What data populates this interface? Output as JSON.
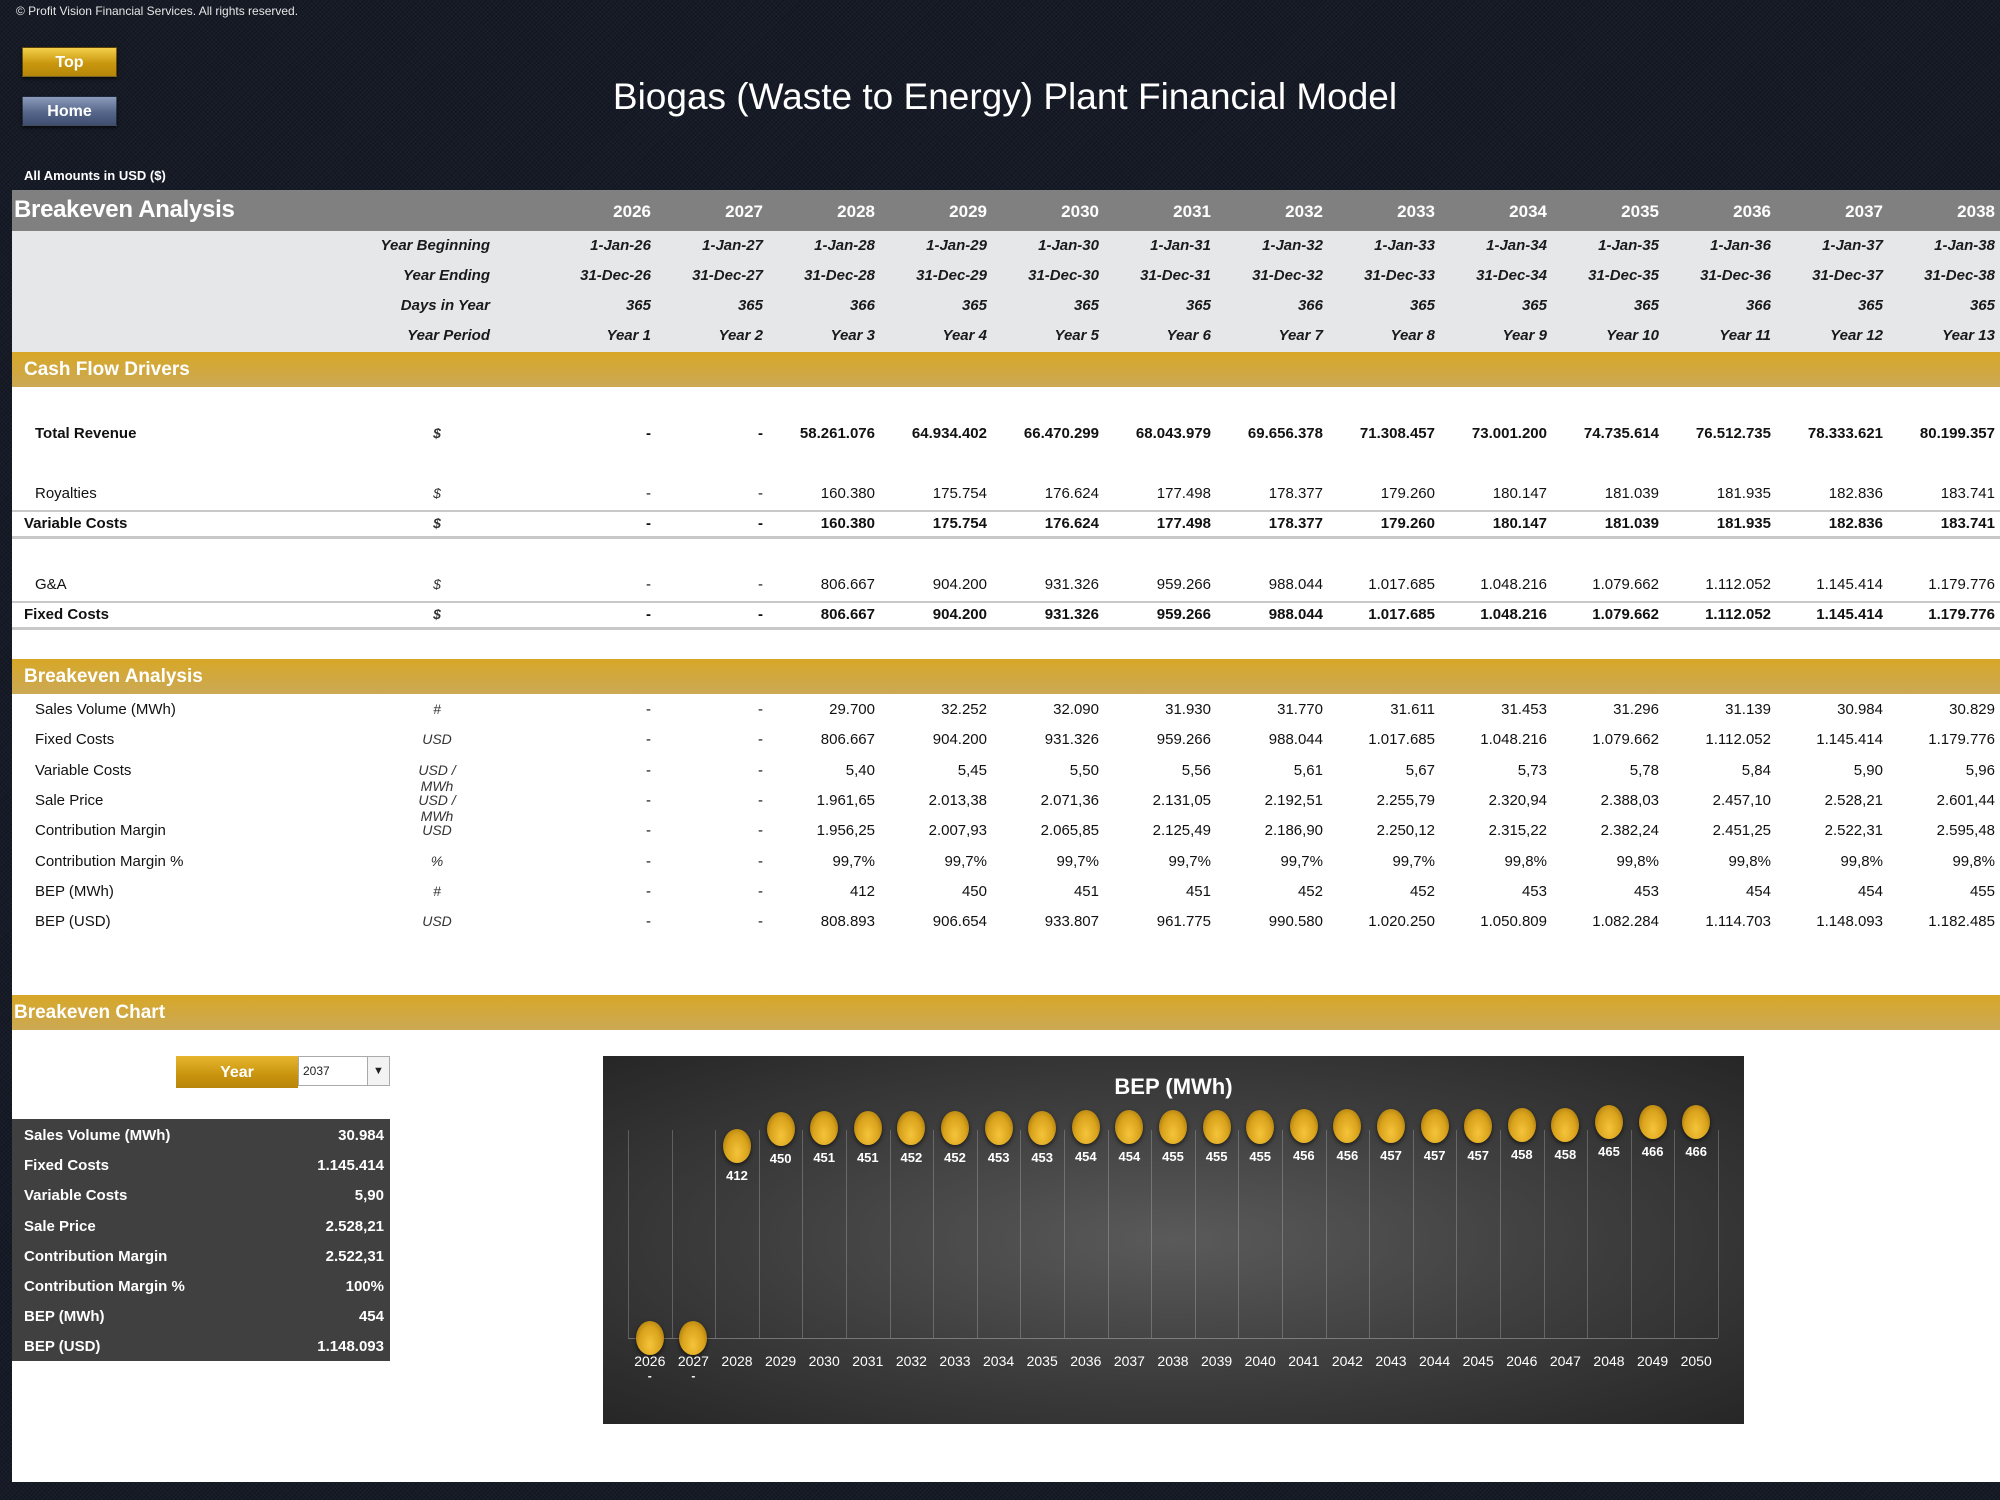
{
  "copyright": "© Profit Vision Financial Services. All rights reserved.",
  "nav": {
    "top_label": "Top",
    "home_label": "Home"
  },
  "title": "Biogas (Waste to Energy) Plant Financial Model",
  "amounts_note": "All Amounts in  USD ($)",
  "header": {
    "title": "Breakeven Analysis",
    "years": [
      "2026",
      "2027",
      "2028",
      "2029",
      "2030",
      "2031",
      "2032",
      "2033",
      "2034",
      "2035",
      "2036",
      "2037",
      "2038"
    ]
  },
  "timeline": {
    "labels": {
      "begin": "Year Beginning",
      "end": "Year Ending",
      "days": "Days in Year",
      "period": "Year Period"
    },
    "begin": [
      "1-Jan-26",
      "1-Jan-27",
      "1-Jan-28",
      "1-Jan-29",
      "1-Jan-30",
      "1-Jan-31",
      "1-Jan-32",
      "1-Jan-33",
      "1-Jan-34",
      "1-Jan-35",
      "1-Jan-36",
      "1-Jan-37",
      "1-Jan-38"
    ],
    "end": [
      "31-Dec-26",
      "31-Dec-27",
      "31-Dec-28",
      "31-Dec-29",
      "31-Dec-30",
      "31-Dec-31",
      "31-Dec-32",
      "31-Dec-33",
      "31-Dec-34",
      "31-Dec-35",
      "31-Dec-36",
      "31-Dec-37",
      "31-Dec-38"
    ],
    "days": [
      "365",
      "365",
      "366",
      "365",
      "365",
      "365",
      "366",
      "365",
      "365",
      "365",
      "366",
      "365",
      "365"
    ],
    "period": [
      "Year 1",
      "Year 2",
      "Year 3",
      "Year 4",
      "Year 5",
      "Year 6",
      "Year 7",
      "Year 8",
      "Year 9",
      "Year 10",
      "Year 11",
      "Year 12",
      "Year 13"
    ]
  },
  "cash_flow": {
    "title": "Cash Flow Drivers",
    "total_revenue": {
      "label": "Total Revenue",
      "unit": "$",
      "values": [
        "-",
        "-",
        "58.261.076",
        "64.934.402",
        "66.470.299",
        "68.043.979",
        "69.656.378",
        "71.308.457",
        "73.001.200",
        "74.735.614",
        "76.512.735",
        "78.333.621",
        "80.199.357"
      ]
    },
    "royalties": {
      "label": "Royalties",
      "unit": "$",
      "values": [
        "-",
        "-",
        "160.380",
        "175.754",
        "176.624",
        "177.498",
        "178.377",
        "179.260",
        "180.147",
        "181.039",
        "181.935",
        "182.836",
        "183.741"
      ]
    },
    "variable_costs": {
      "label": "Variable Costs",
      "unit": "$",
      "values": [
        "-",
        "-",
        "160.380",
        "175.754",
        "176.624",
        "177.498",
        "178.377",
        "179.260",
        "180.147",
        "181.039",
        "181.935",
        "182.836",
        "183.741"
      ]
    },
    "ga": {
      "label": "G&A",
      "unit": "$",
      "values": [
        "-",
        "-",
        "806.667",
        "904.200",
        "931.326",
        "959.266",
        "988.044",
        "1.017.685",
        "1.048.216",
        "1.079.662",
        "1.112.052",
        "1.145.414",
        "1.179.776"
      ]
    },
    "fixed_costs": {
      "label": "Fixed Costs",
      "unit": "$",
      "values": [
        "-",
        "-",
        "806.667",
        "904.200",
        "931.326",
        "959.266",
        "988.044",
        "1.017.685",
        "1.048.216",
        "1.079.662",
        "1.112.052",
        "1.145.414",
        "1.179.776"
      ]
    }
  },
  "breakeven": {
    "title": "Breakeven Analysis",
    "rows": [
      {
        "label": "Sales Volume (MWh)",
        "unit": "#",
        "values": [
          "-",
          "-",
          "29.700",
          "32.252",
          "32.090",
          "31.930",
          "31.770",
          "31.611",
          "31.453",
          "31.296",
          "31.139",
          "30.984",
          "30.829"
        ]
      },
      {
        "label": "Fixed Costs",
        "unit": "USD",
        "values": [
          "-",
          "-",
          "806.667",
          "904.200",
          "931.326",
          "959.266",
          "988.044",
          "1.017.685",
          "1.048.216",
          "1.079.662",
          "1.112.052",
          "1.145.414",
          "1.179.776"
        ]
      },
      {
        "label": "Variable Costs",
        "unit": "USD / MWh",
        "values": [
          "-",
          "-",
          "5,40",
          "5,45",
          "5,50",
          "5,56",
          "5,61",
          "5,67",
          "5,73",
          "5,78",
          "5,84",
          "5,90",
          "5,96"
        ]
      },
      {
        "label": "Sale Price",
        "unit": "USD / MWh",
        "values": [
          "-",
          "-",
          "1.961,65",
          "2.013,38",
          "2.071,36",
          "2.131,05",
          "2.192,51",
          "2.255,79",
          "2.320,94",
          "2.388,03",
          "2.457,10",
          "2.528,21",
          "2.601,44"
        ]
      },
      {
        "label": "Contribution Margin",
        "unit": "USD",
        "values": [
          "-",
          "-",
          "1.956,25",
          "2.007,93",
          "2.065,85",
          "2.125,49",
          "2.186,90",
          "2.250,12",
          "2.315,22",
          "2.382,24",
          "2.451,25",
          "2.522,31",
          "2.595,48"
        ]
      },
      {
        "label": "Contribution Margin %",
        "unit": "%",
        "values": [
          "-",
          "-",
          "99,7%",
          "99,7%",
          "99,7%",
          "99,7%",
          "99,7%",
          "99,7%",
          "99,8%",
          "99,8%",
          "99,8%",
          "99,8%",
          "99,8%"
        ]
      },
      {
        "label": "BEP (MWh)",
        "unit": "#",
        "values": [
          "-",
          "-",
          "412",
          "450",
          "451",
          "451",
          "452",
          "452",
          "453",
          "453",
          "454",
          "454",
          "455"
        ]
      },
      {
        "label": "BEP (USD)",
        "unit": "USD",
        "values": [
          "-",
          "-",
          "808.893",
          "906.654",
          "933.807",
          "961.775",
          "990.580",
          "1.020.250",
          "1.050.809",
          "1.082.284",
          "1.114.703",
          "1.148.093",
          "1.182.485"
        ]
      }
    ]
  },
  "breakeven_chart_section": {
    "title": "Breakeven Chart",
    "year_button": "Year",
    "selected_year": "2037",
    "summary": [
      {
        "label": "Sales Volume (MWh)",
        "value": "30.984"
      },
      {
        "label": "Fixed Costs",
        "value": "1.145.414"
      },
      {
        "label": "Variable Costs",
        "value": "5,90"
      },
      {
        "label": "Sale Price",
        "value": "2.528,21"
      },
      {
        "label": "Contribution Margin",
        "value": "2.522,31"
      },
      {
        "label": "Contribution Margin %",
        "value": "100%"
      },
      {
        "label": "BEP (MWh)",
        "value": "454"
      },
      {
        "label": "BEP (USD)",
        "value": "1.148.093"
      }
    ]
  },
  "chart_data": {
    "type": "scatter",
    "title": "BEP (MWh)",
    "xlabel": "",
    "ylabel": "",
    "categories": [
      "2026",
      "2027",
      "2028",
      "2029",
      "2030",
      "2031",
      "2032",
      "2033",
      "2034",
      "2035",
      "2036",
      "2037",
      "2038",
      "2039",
      "2040",
      "2041",
      "2042",
      "2043",
      "2044",
      "2045",
      "2046",
      "2047",
      "2048",
      "2049",
      "2050"
    ],
    "values": [
      0,
      0,
      412,
      450,
      451,
      451,
      452,
      452,
      453,
      453,
      454,
      454,
      455,
      455,
      455,
      456,
      456,
      457,
      457,
      457,
      458,
      458,
      465,
      466,
      466
    ],
    "data_labels": [
      "-",
      "-",
      "412",
      "450",
      "451",
      "451",
      "452",
      "452",
      "453",
      "453",
      "454",
      "454",
      "455",
      "455",
      "455",
      "456",
      "456",
      "457",
      "457",
      "457",
      "458",
      "458",
      "465",
      "466",
      "466"
    ],
    "grid": "vertical",
    "legend": "none",
    "marker_color": "#e0a920",
    "background": "#3c3c3c"
  }
}
